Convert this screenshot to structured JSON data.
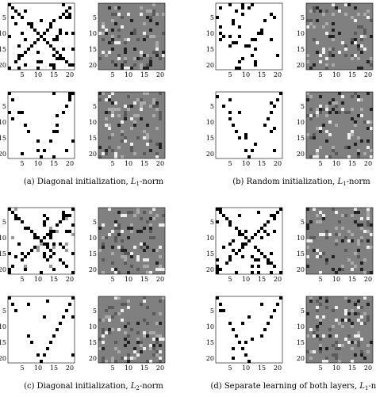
{
  "ticks": [
    5,
    10,
    15,
    20
  ],
  "subfigures": [
    {
      "label": "(a) Diagonal initialization, ",
      "var": "L",
      "sub": "1",
      "suffix": "-norm"
    },
    {
      "label": "(b) Random initialization, ",
      "var": "L",
      "sub": "1",
      "suffix": "-norm"
    },
    {
      "label": "(c) Diagonal initialization, ",
      "var": "L",
      "sub": "2",
      "suffix": "-norm"
    },
    {
      "label": "(d) Separate learning of both layers, ",
      "var": "L",
      "sub": "1",
      "suffix": "-norm"
    }
  ]
}
